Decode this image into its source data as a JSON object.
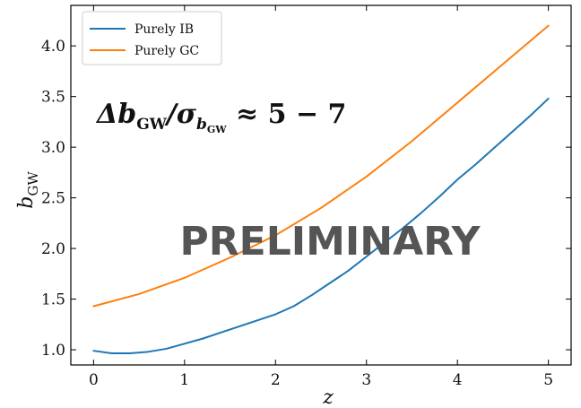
{
  "chart_data": {
    "type": "line",
    "xlabel": "z",
    "ylabel": "b",
    "ylabel_sub": "GW",
    "xlim": [
      -0.25,
      5.25
    ],
    "ylim": [
      0.85,
      4.4
    ],
    "xticks": [
      0,
      1,
      2,
      3,
      4,
      5
    ],
    "yticks": [
      1.0,
      1.5,
      2.0,
      2.5,
      3.0,
      3.5,
      4.0
    ],
    "xtick_labels": [
      "0",
      "1",
      "2",
      "3",
      "4",
      "5"
    ],
    "ytick_labels": [
      "1.0",
      "1.5",
      "2.0",
      "2.5",
      "3.0",
      "3.5",
      "4.0"
    ],
    "grid": false,
    "legend_position": "top-left",
    "series": [
      {
        "name": "Purely IB",
        "color": "#1f77b4",
        "x": [
          0,
          0.2,
          0.4,
          0.6,
          0.8,
          1.0,
          1.2,
          1.4,
          1.6,
          1.8,
          2.0,
          2.2,
          2.4,
          2.6,
          2.8,
          3.0,
          3.2,
          3.4,
          3.6,
          3.8,
          4.0,
          4.2,
          4.4,
          4.6,
          4.8,
          5.0
        ],
        "values": [
          0.99,
          0.965,
          0.965,
          0.98,
          1.01,
          1.06,
          1.11,
          1.17,
          1.23,
          1.29,
          1.35,
          1.43,
          1.54,
          1.66,
          1.78,
          1.92,
          2.06,
          2.2,
          2.35,
          2.51,
          2.68,
          2.83,
          2.99,
          3.15,
          3.31,
          3.48
        ]
      },
      {
        "name": "Purely GC",
        "color": "#ff7f0e",
        "x": [
          0,
          0.5,
          1.0,
          1.5,
          2.0,
          2.5,
          3.0,
          3.5,
          4.0,
          4.5,
          5.0
        ],
        "values": [
          1.43,
          1.55,
          1.71,
          1.91,
          2.13,
          2.4,
          2.71,
          3.06,
          3.44,
          3.82,
          4.2
        ]
      }
    ],
    "annotations": {
      "formula_main": "Δb",
      "formula_sub1": "GW",
      "formula_mid": "/σ",
      "formula_sub2": "b",
      "formula_subsub": "GW",
      "formula_end": " ≈ 5 − 7",
      "watermark": "PRELIMINARY"
    }
  }
}
